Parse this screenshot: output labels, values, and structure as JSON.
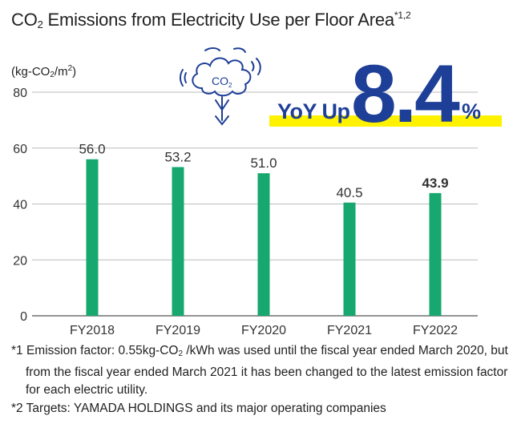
{
  "title": {
    "prefix": "CO",
    "sub": "2",
    "main": " Emissions from Electricity Use per Floor Area",
    "sup": "*1,2"
  },
  "unit": {
    "prefix": "(kg-CO",
    "sub": "2",
    "mid": "/m",
    "sup": "2",
    "suffix": ")"
  },
  "highlight": {
    "label": "YoY Up",
    "value": "8.4",
    "pct": "%"
  },
  "icon": {
    "name": "co2-cloud-icon",
    "label": "CO",
    "sub": "2"
  },
  "colors": {
    "bar": "#16a86e",
    "accent": "#1e3f98",
    "highlight": "#fff200"
  },
  "chart_data": {
    "type": "bar",
    "categories": [
      "FY2018",
      "FY2019",
      "FY2020",
      "FY2021",
      "FY2022"
    ],
    "values": [
      56.0,
      53.2,
      51.0,
      40.5,
      43.9
    ],
    "data_labels": [
      "56.0",
      "53.2",
      "51.0",
      "40.5",
      "43.9"
    ],
    "emphasized": "FY2022",
    "yticks": [
      "0",
      "20",
      "40",
      "60",
      "80"
    ],
    "ylim": [
      0,
      80
    ],
    "grid": true,
    "ylabel": "(kg-CO2/m2)"
  },
  "notes": {
    "n1": {
      "a": "*1 Emission factor: 0.55kg-CO",
      "sub": "2",
      "b": " /kWh was used until the fiscal year ended March 2020, but from the fiscal year ended March 2021 it has been changed to the latest emission factor for each electric utility."
    },
    "n2": "*2 Targets: YAMADA HOLDINGS and its major operating companies"
  }
}
